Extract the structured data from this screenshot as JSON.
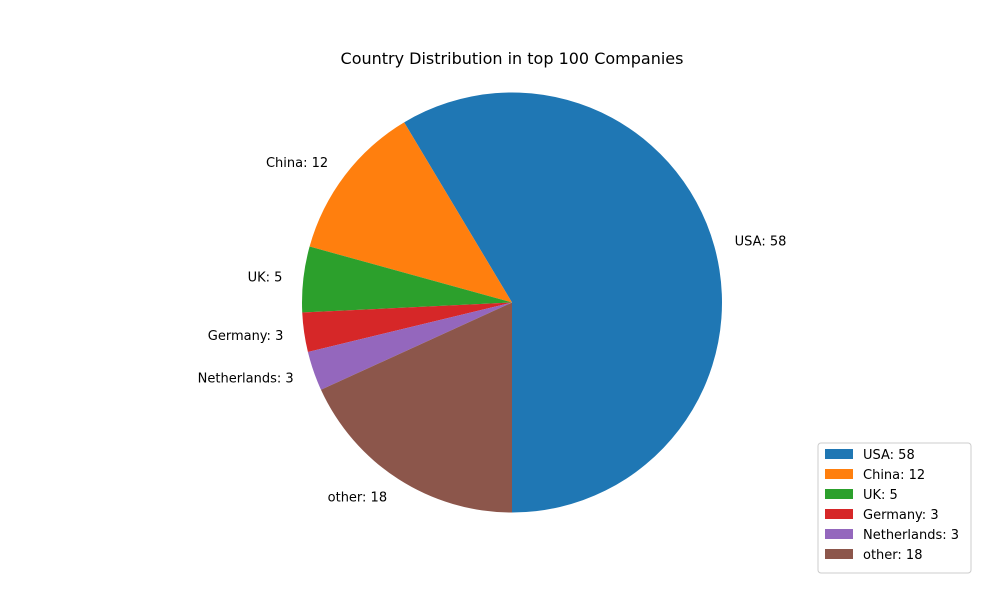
{
  "chart_data": {
    "type": "pie",
    "title": "Country Distribution in top 100 Companies",
    "categories": [
      "USA",
      "China",
      "UK",
      "Germany",
      "Netherlands",
      "other"
    ],
    "values": [
      58,
      12,
      5,
      3,
      3,
      18
    ],
    "labels": [
      "USA: 58",
      "China: 12",
      "UK: 5",
      "Germany: 3",
      "Netherlands: 3",
      "other: 18"
    ],
    "colors": [
      "#1f77b4",
      "#ff7f0e",
      "#2ca02c",
      "#d62728",
      "#9467bd",
      "#8c564b"
    ],
    "start_angle_deg": -90,
    "direction": "counterclockwise",
    "legend": {
      "placement": "lower-right",
      "entries": [
        "USA: 58",
        "China: 12",
        "UK: 5",
        "Germany: 3",
        "Netherlands: 3",
        "other: 18"
      ]
    }
  }
}
